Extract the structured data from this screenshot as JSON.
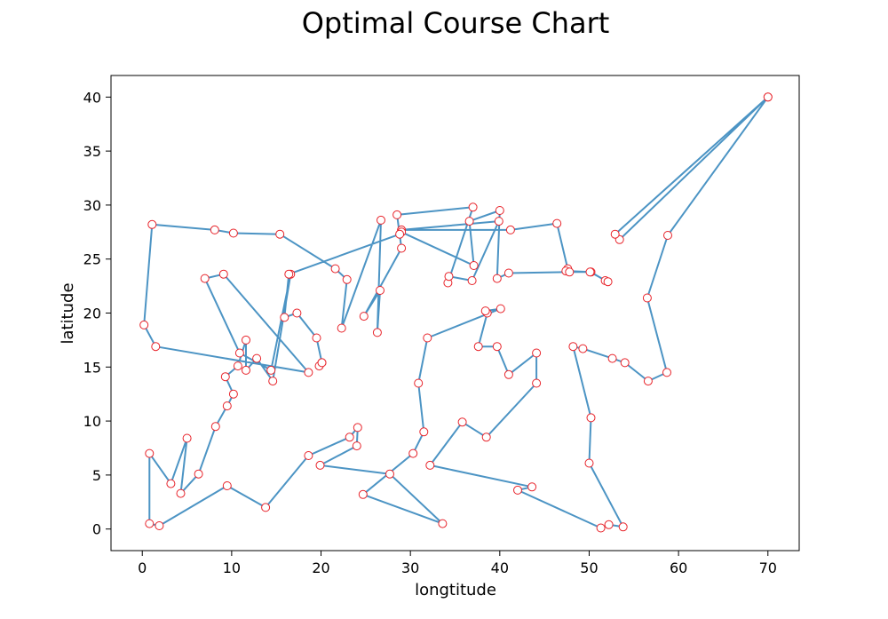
{
  "chart_data": {
    "type": "line",
    "title": "Optimal Course Chart",
    "xlabel": "longtitude",
    "ylabel": "latitude",
    "xlim": [
      -3.5,
      73.5
    ],
    "ylim": [
      -2.0,
      42.0
    ],
    "xticks": [
      0,
      10,
      20,
      30,
      40,
      50,
      60,
      70
    ],
    "yticks": [
      0,
      5,
      10,
      15,
      20,
      25,
      30,
      35,
      40
    ],
    "grid": false,
    "legend": "none",
    "line_color": "#4c94c4",
    "marker_edge_color": "#e8232a",
    "marker_face_color": "#ffffff",
    "series": [
      {
        "x": [
          70.0,
          53.4,
          52.9,
          70.0,
          58.8,
          56.5,
          58.7,
          56.6,
          54.0,
          52.6,
          49.3,
          48.2,
          50.2,
          50.0,
          53.8,
          52.2,
          51.3,
          42.0,
          43.6,
          32.2,
          35.8,
          38.5,
          44.1,
          44.1,
          41.0,
          39.7,
          37.6,
          38.6,
          38.4,
          40.1,
          31.9,
          30.9,
          31.5,
          30.3,
          24.7,
          33.6,
          27.7,
          19.9,
          24.0,
          24.1,
          23.2,
          18.6,
          13.8,
          9.5,
          1.9,
          0.8,
          0.8,
          3.2,
          5.0,
          4.3,
          6.3,
          8.2,
          9.5,
          10.2,
          9.3,
          10.7,
          11.6,
          11.6,
          12.8,
          14.6,
          16.6,
          14.4,
          10.9,
          7.0,
          9.1,
          18.6,
          1.5,
          0.2,
          1.1,
          8.1,
          10.2,
          15.4,
          21.6,
          22.9,
          22.3,
          26.7,
          26.3,
          26.6,
          24.8,
          29.0,
          28.5,
          37.0,
          34.2,
          34.3,
          36.9,
          39.9,
          29.0,
          41.2,
          46.4,
          47.6,
          47.4,
          50.2,
          51.8,
          52.1,
          50.1,
          47.8,
          41.0,
          39.7,
          40.0,
          36.6,
          37.1,
          29.0,
          28.8,
          16.4,
          15.9,
          17.3,
          19.5,
          20.1,
          19.8,
          20.1
        ],
        "y": [
          40.0,
          26.8,
          27.3,
          40.0,
          27.2,
          21.4,
          14.5,
          13.7,
          15.4,
          15.8,
          16.7,
          16.9,
          10.3,
          6.1,
          0.2,
          0.4,
          0.1,
          3.6,
          3.9,
          5.9,
          9.9,
          8.5,
          13.5,
          16.3,
          14.3,
          16.9,
          16.9,
          20.0,
          20.2,
          20.4,
          17.7,
          13.5,
          9.0,
          7.0,
          3.2,
          0.5,
          5.1,
          5.9,
          7.7,
          9.4,
          8.5,
          6.8,
          2.0,
          4.0,
          0.3,
          0.5,
          7.0,
          4.2,
          8.4,
          3.3,
          5.1,
          9.5,
          11.4,
          12.5,
          14.1,
          15.1,
          17.5,
          14.7,
          15.8,
          13.7,
          23.6,
          14.7,
          16.3,
          23.2,
          23.6,
          14.5,
          16.9,
          18.9,
          28.2,
          27.7,
          27.4,
          27.3,
          24.1,
          23.1,
          18.6,
          28.6,
          18.2,
          22.1,
          19.7,
          26.0,
          29.1,
          29.8,
          22.8,
          23.4,
          23.0,
          28.5,
          27.7,
          27.7,
          28.3,
          24.1,
          23.9,
          23.8,
          23.0,
          22.9,
          23.8,
          23.8,
          23.7,
          23.2,
          29.5,
          28.5,
          24.4,
          27.5,
          27.3,
          23.6,
          19.6,
          20.0,
          17.7,
          15.4,
          15.1,
          15.4
        ]
      }
    ]
  }
}
